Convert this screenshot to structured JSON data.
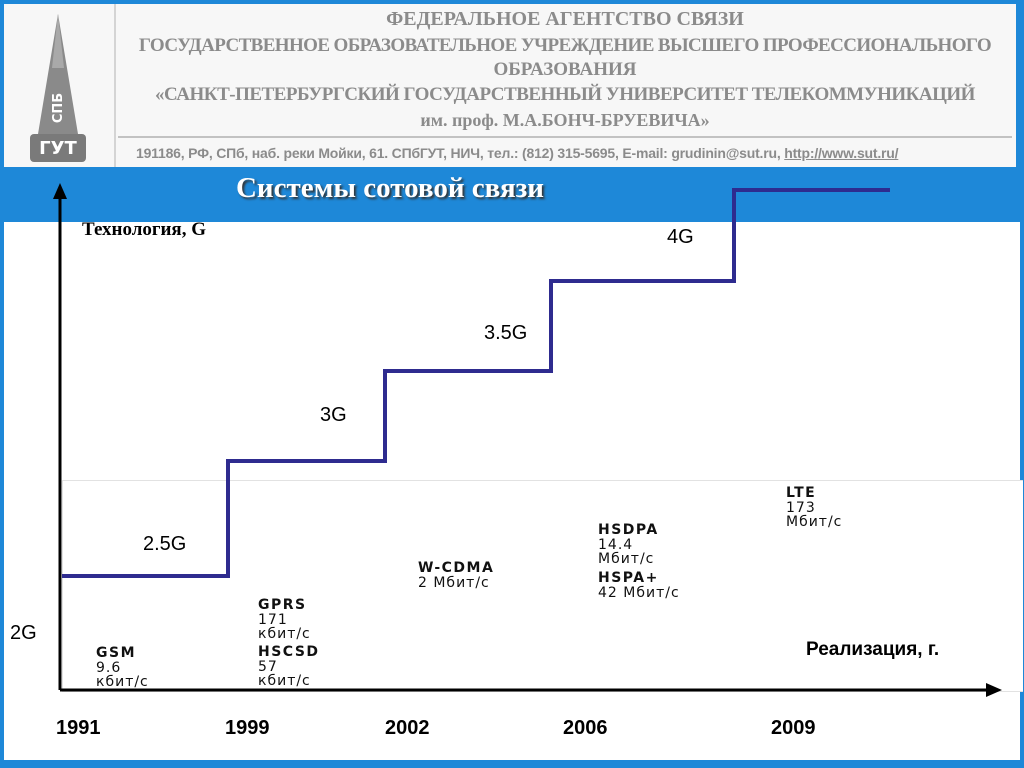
{
  "header": {
    "line1": "ФЕДЕРАЛЬНОЕ АГЕНТСТВО СВЯЗИ",
    "line2": "ГОСУДАРСТВЕННОЕ ОБРАЗОВАТЕЛЬНОЕ УЧРЕЖДЕНИЕ ВЫСШЕГО ПРОФЕССИОНАЛЬНОГО",
    "line3": "ОБРАЗОВАНИЯ",
    "line4": "«САНКТ-ПЕТЕРБУРГСКИЙ ГОСУДАРСТВЕННЫЙ УНИВЕРСИТЕТ ТЕЛЕКОММУНИКАЦИЙ",
    "line5": "им. проф. М.А.БОНЧ-БРУЕВИЧА»",
    "contacts": "191186, РФ, СПб, наб. реки Мойки, 61. СПбГУТ, НИЧ, тел.: (812) 315-5695, E-mail: grudinin@sut.ru, ",
    "url": "http://www.sut.ru/",
    "logo_text_top": "СПБ",
    "logo_text_bottom": "ГУТ"
  },
  "slide": {
    "title": "Системы сотовой связи"
  },
  "diagram": {
    "y_axis_label": "Технология, G",
    "x_axis_label": "Реализация, г.",
    "step_color": "#2e2b8f",
    "axis_color": "#000000",
    "generations": [
      "2G",
      "2.5G",
      "3G",
      "3.5G",
      "4G"
    ],
    "years": [
      "1991",
      "1999",
      "2002",
      "2006",
      "2009"
    ],
    "technologies": [
      {
        "name": "GSM",
        "speed_value": "9.6",
        "speed_unit": "кбит/с"
      },
      {
        "name": "GPRS",
        "speed_value": "171",
        "speed_unit": "кбит/с"
      },
      {
        "name": "HSCSD",
        "speed_value": "57",
        "speed_unit": "кбит/с"
      },
      {
        "name": "W-CDMA",
        "speed": "2 Мбит/с"
      },
      {
        "name": "HSDPA",
        "speed_value": "14.4",
        "speed_unit": "Мбит/с"
      },
      {
        "name": "HSPA+",
        "speed": "42 Мбит/с"
      },
      {
        "name": "LTE",
        "speed_value": "173",
        "speed_unit": "Мбит/с"
      }
    ]
  }
}
